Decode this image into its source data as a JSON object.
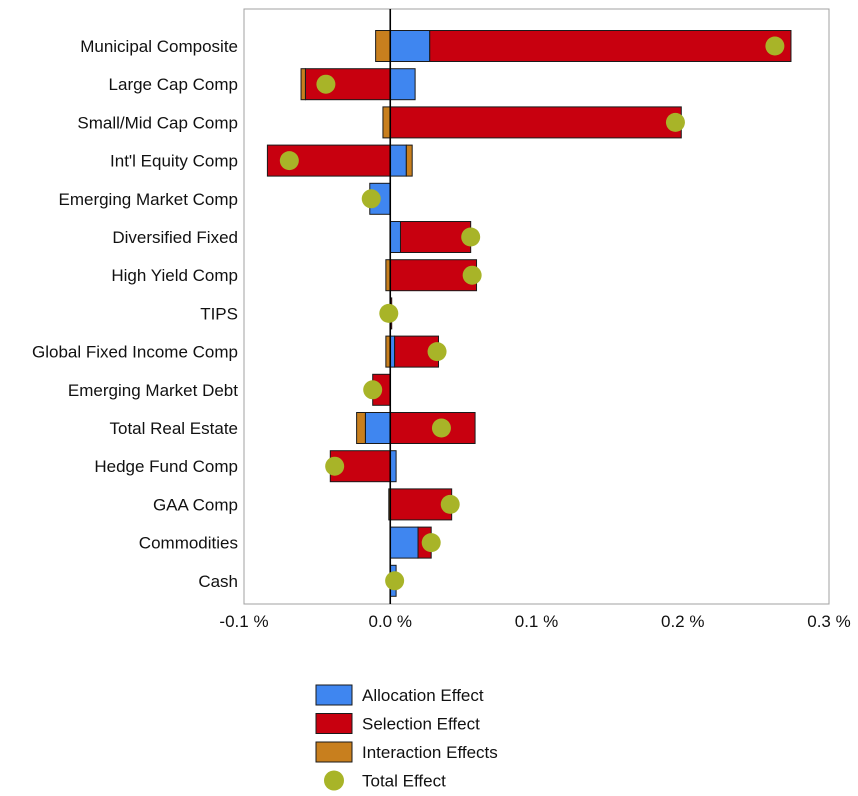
{
  "chart_data": {
    "type": "bar",
    "orientation": "horizontal",
    "stacked": "diverging",
    "categories": [
      "Municipal Composite",
      "Large Cap Comp",
      "Small/Mid Cap Comp",
      "Int'l Equity Comp",
      "Emerging Market Comp",
      "Diversified Fixed",
      "High Yield Comp",
      "TIPS",
      "Global Fixed Income Comp",
      "Emerging Market Debt",
      "Total Real Estate",
      "Hedge Fund Comp",
      "GAA Comp",
      "Commodities",
      "Cash"
    ],
    "series": [
      {
        "name": "Allocation Effect",
        "color": "#3f86f0",
        "values": [
          0.027,
          0.017,
          0.0,
          0.011,
          -0.014,
          0.007,
          0.0,
          0.0,
          0.003,
          0.0,
          -0.017,
          0.004,
          0.0,
          0.019,
          0.004
        ]
      },
      {
        "name": "Selection Effect",
        "color": "#c8000f",
        "values": [
          0.247,
          -0.058,
          0.199,
          -0.084,
          0.0,
          0.048,
          0.059,
          0.001,
          0.03,
          -0.012,
          0.058,
          -0.041,
          0.042,
          0.009,
          0.0
        ]
      },
      {
        "name": "Interaction Effects",
        "color": "#c87f1e",
        "values": [
          -0.01,
          -0.003,
          -0.005,
          0.004,
          0.0,
          0.0,
          -0.003,
          0.0,
          -0.003,
          0.0,
          -0.006,
          0.0,
          -0.001,
          0.0,
          0.0
        ]
      }
    ],
    "total_effect": {
      "name": "Total Effect",
      "color": "#a8b428",
      "values": [
        0.263,
        -0.044,
        0.195,
        -0.069,
        -0.013,
        0.055,
        0.056,
        -0.001,
        0.032,
        -0.012,
        0.035,
        -0.038,
        0.041,
        0.028,
        0.003
      ]
    },
    "x_ticks": [
      -0.1,
      0.0,
      0.1,
      0.2,
      0.3
    ],
    "x_tick_labels": [
      "-0.1 %",
      "0.0 %",
      "0.1 %",
      "0.2 %",
      "0.3 %"
    ],
    "xlim": [
      -0.1,
      0.3
    ],
    "grid": false,
    "legend_position": "bottom"
  }
}
